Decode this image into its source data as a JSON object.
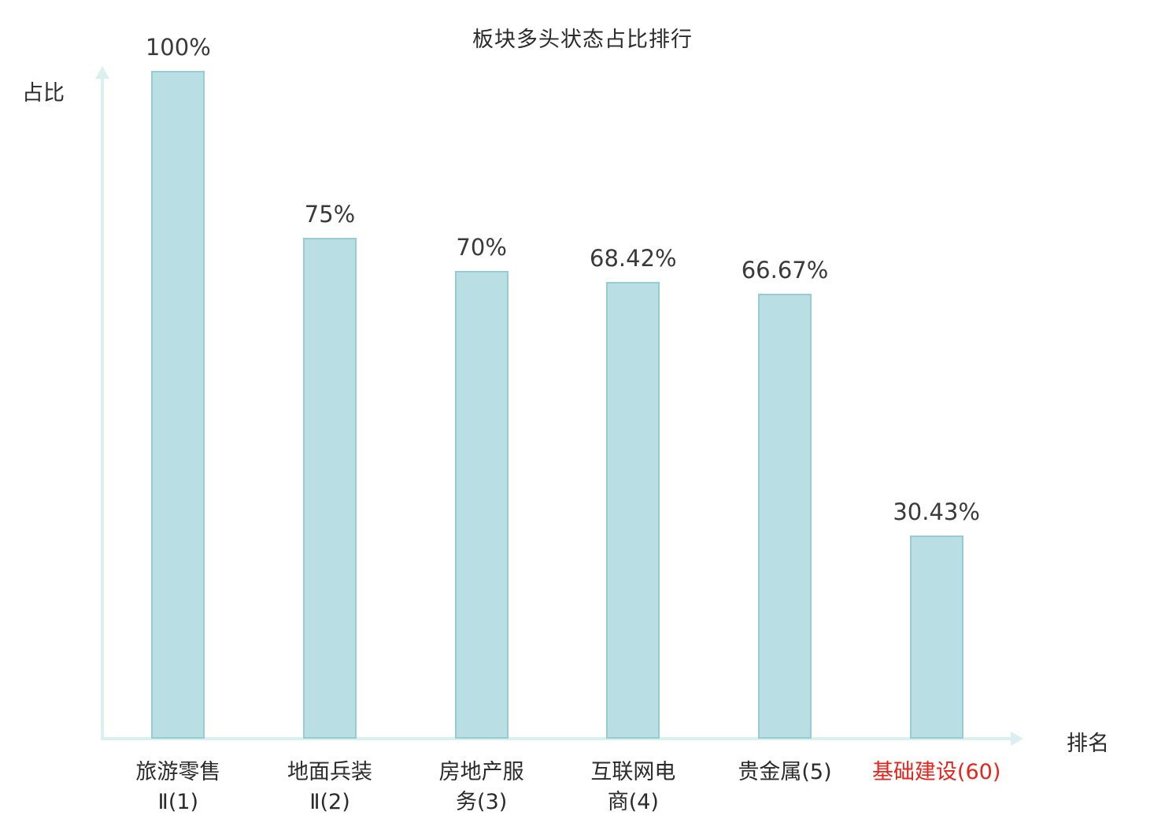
{
  "chart_data": {
    "type": "bar",
    "title": "板块多头状态占比排行",
    "ylabel": "占比",
    "xlabel": "排名",
    "ylim": [
      0,
      100
    ],
    "grid": false,
    "legend": "none",
    "categories": [
      "旅游零售Ⅱ(1)",
      "地面兵装Ⅱ(2)",
      "房地产服务(3)",
      "互联网电商(4)",
      "贵金属(5)",
      "基础建设(60)"
    ],
    "values": [
      100,
      75,
      70,
      68.42,
      66.67,
      30.43
    ],
    "bars": [
      {
        "category": "旅游零售Ⅱ(1)",
        "label_lines": [
          "旅游零售",
          "Ⅱ(1)"
        ],
        "value": 100,
        "value_label": "100%",
        "highlight": false
      },
      {
        "category": "地面兵装Ⅱ(2)",
        "label_lines": [
          "地面兵装",
          "Ⅱ(2)"
        ],
        "value": 75,
        "value_label": "75%",
        "highlight": false
      },
      {
        "category": "房地产服务(3)",
        "label_lines": [
          "房地产服",
          "务(3)"
        ],
        "value": 70,
        "value_label": "70%",
        "highlight": false
      },
      {
        "category": "互联网电商(4)",
        "label_lines": [
          "互联网电",
          "商(4)"
        ],
        "value": 68.42,
        "value_label": "68.42%",
        "highlight": false
      },
      {
        "category": "贵金属(5)",
        "label_lines": [
          "贵金属(5)"
        ],
        "value": 66.67,
        "value_label": "66.67%",
        "highlight": false
      },
      {
        "category": "基础建设(60)",
        "label_lines": [
          "基础建设(60)"
        ],
        "value": 30.43,
        "value_label": "30.43%",
        "highlight": true
      }
    ],
    "colors": {
      "bar_fill": "#b9dfe4",
      "bar_border": "#97ccd4",
      "axis": "#d9f0ee",
      "text": "#2b2b2b",
      "value_text": "#3a3a3a",
      "highlight_text": "#e8231a"
    }
  }
}
